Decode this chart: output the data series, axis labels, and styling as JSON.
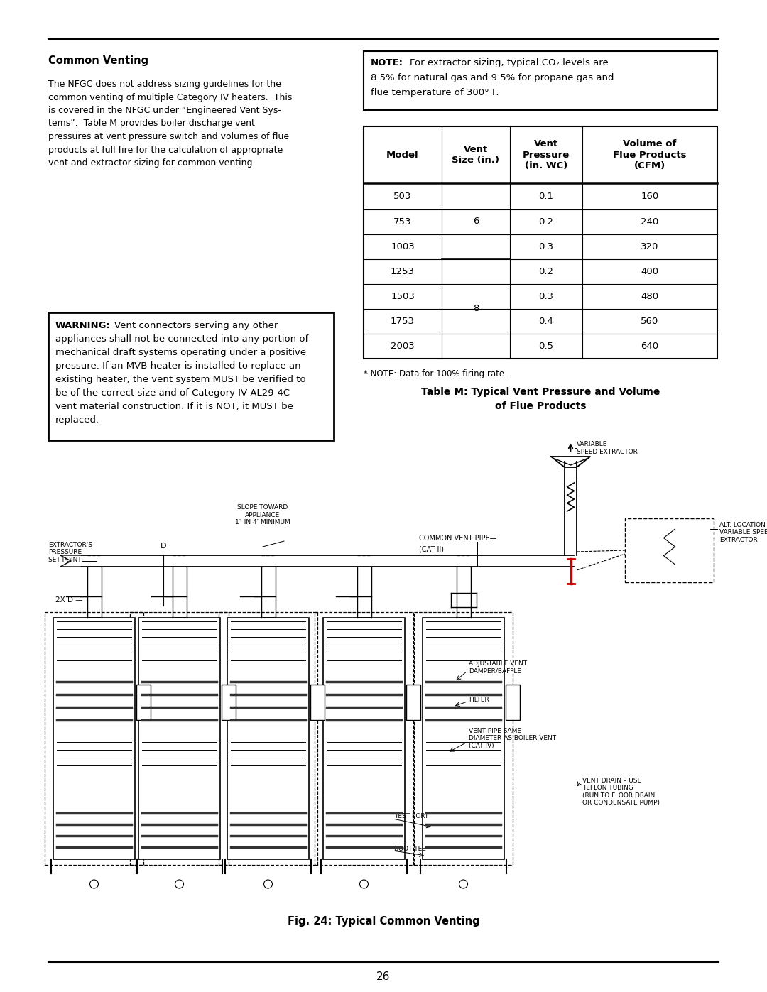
{
  "page_width": 10.8,
  "page_height": 13.97,
  "background_color": "#ffffff",
  "page_number": "26",
  "section_title": "Common Venting",
  "body_text_left": [
    "The NFGC does not address sizing guidelines for the",
    "common venting of multiple Category IV heaters.  This",
    "is covered in the NFGC under “Engineered Vent Sys-",
    "tems”.  Table M provides boiler discharge vent",
    "pressures at vent pressure switch and volumes of flue",
    "products at full fire for the calculation of appropriate",
    "vent and extractor sizing for common venting."
  ],
  "table_title_line1": "Table M: Typical Vent Pressure and Volume",
  "table_title_line2": "of Flue Products",
  "table_note": "* NOTE: Data for 100% firing rate.",
  "table_headers": [
    "Model",
    "Vent\nSize (in.)",
    "Vent\nPressure\n(in. WC)",
    "Volume of\nFlue Products\n(CFM)"
  ],
  "table_models": [
    "503",
    "753",
    "1003",
    "1253",
    "1503",
    "1753",
    "2003"
  ],
  "table_pressures": [
    "0.1",
    "0.2",
    "0.3",
    "0.2",
    "0.3",
    "0.4",
    "0.5"
  ],
  "table_volumes": [
    "160",
    "240",
    "320",
    "400",
    "480",
    "560",
    "640"
  ],
  "fig_caption": "Fig. 24: Typical Common Venting",
  "warn_lines": [
    "appliances shall not be connected into any portion of",
    "mechanical draft systems operating under a positive",
    "pressure. If an MVB heater is installed to replace an",
    "existing heater, the vent system MUST be verified to",
    "be of the correct size and of Category IV AL29-4C",
    "vent material construction. If it is NOT, it MUST be",
    "replaced."
  ]
}
